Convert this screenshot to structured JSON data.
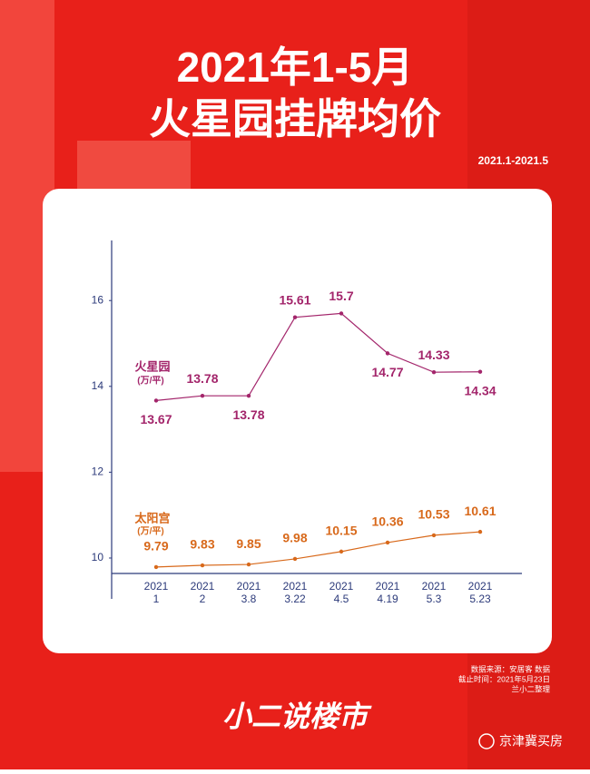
{
  "chart_data": {
    "type": "line",
    "title": "2021年1-5月",
    "subtitle": "火星园挂牌均价",
    "date_range": "2021.1-2021.5",
    "categories": [
      "2021\n1",
      "2021\n2",
      "2021\n3.8",
      "2021\n3.22",
      "2021\n4.5",
      "2021\n4.19",
      "2021\n5.3",
      "2021\n5.23"
    ],
    "series": [
      {
        "name": "火星园",
        "unit": "(万/平)",
        "color": "#a3256b",
        "values": [
          13.67,
          13.78,
          13.78,
          15.61,
          15.7,
          14.77,
          14.33,
          14.34
        ]
      },
      {
        "name": "太阳宫",
        "unit": "(万/平)",
        "color": "#d8691b",
        "values": [
          9.79,
          9.83,
          9.85,
          9.98,
          10.15,
          10.36,
          10.53,
          10.61
        ]
      }
    ],
    "ylim": [
      9.64,
      17.4
    ],
    "yticks": [
      10,
      12,
      14,
      16
    ],
    "notes": [
      "数据来源：安居客 数据",
      "截止时间：2021年5月23日",
      "兰小二整理"
    ]
  },
  "footer": {
    "brand": "小二说楼市",
    "account": "京津冀买房"
  }
}
